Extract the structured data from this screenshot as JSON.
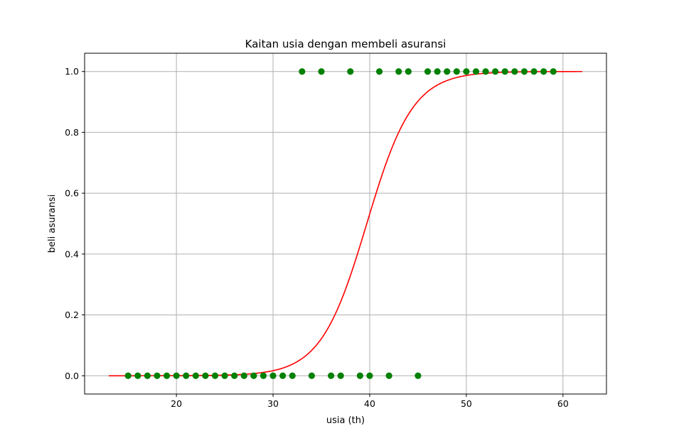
{
  "chart_data": {
    "type": "scatter",
    "title": "Kaitan usia dengan membeli asuransi",
    "xlabel": "usia (th)",
    "ylabel": "beli asuransi",
    "xlim": [
      10.5,
      64.5
    ],
    "ylim": [
      -0.06,
      1.06
    ],
    "x_ticks": [
      20,
      30,
      40,
      50,
      60
    ],
    "y_ticks": [
      0.0,
      0.2,
      0.4,
      0.6,
      0.8,
      1.0
    ],
    "x_tick_labels": [
      "20",
      "30",
      "40",
      "50",
      "60"
    ],
    "y_tick_labels": [
      "0.0",
      "0.2",
      "0.4",
      "0.6",
      "0.8",
      "1.0"
    ],
    "grid": true,
    "series": [
      {
        "kind": "scatter",
        "color": "#008000",
        "points": [
          [
            15,
            0
          ],
          [
            16,
            0
          ],
          [
            17,
            0
          ],
          [
            18,
            0
          ],
          [
            19,
            0
          ],
          [
            20,
            0
          ],
          [
            21,
            0
          ],
          [
            22,
            0
          ],
          [
            23,
            0
          ],
          [
            24,
            0
          ],
          [
            25,
            0
          ],
          [
            26,
            0
          ],
          [
            27,
            0
          ],
          [
            28,
            0
          ],
          [
            29,
            0
          ],
          [
            30,
            0
          ],
          [
            31,
            0
          ],
          [
            32,
            0
          ],
          [
            34,
            0
          ],
          [
            36,
            0
          ],
          [
            37,
            0
          ],
          [
            39,
            0
          ],
          [
            40,
            0
          ],
          [
            42,
            0
          ],
          [
            45,
            0
          ],
          [
            33,
            1
          ],
          [
            35,
            1
          ],
          [
            38,
            1
          ],
          [
            41,
            1
          ],
          [
            43,
            1
          ],
          [
            44,
            1
          ],
          [
            46,
            1
          ],
          [
            47,
            1
          ],
          [
            48,
            1
          ],
          [
            49,
            1
          ],
          [
            50,
            1
          ],
          [
            51,
            1
          ],
          [
            52,
            1
          ],
          [
            53,
            1
          ],
          [
            54,
            1
          ],
          [
            55,
            1
          ],
          [
            56,
            1
          ],
          [
            57,
            1
          ],
          [
            58,
            1
          ],
          [
            59,
            1
          ]
        ]
      },
      {
        "kind": "logistic-curve",
        "color": "#ff0000",
        "x_range": [
          13,
          62
        ],
        "midpoint": 39.7,
        "steepness": 0.42
      }
    ]
  }
}
